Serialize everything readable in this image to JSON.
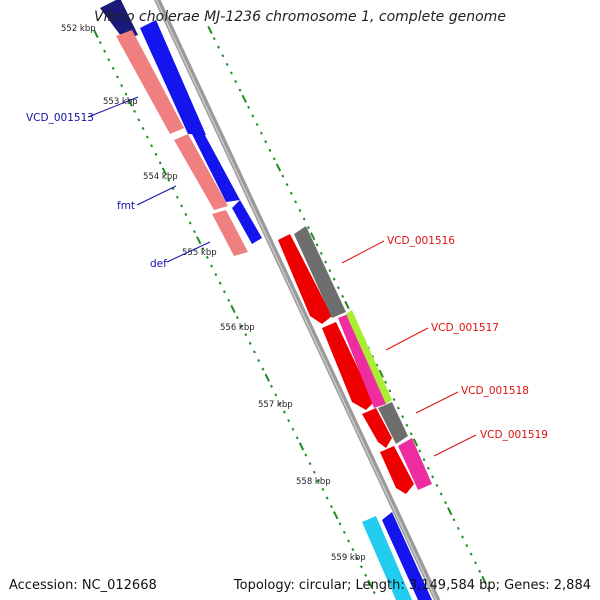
{
  "title": "Vibrio cholerae MJ-1236 chromosome 1, complete genome",
  "accession": "Accession: NC_012668",
  "summary": "Topology: circular; Length: 3,149,584 bp; Genes: 2,884",
  "colors": {
    "backbone": "#999999",
    "tick": "#1f8c1f",
    "forward_gene": "#0000ee",
    "forward_rna": "#f08c8c",
    "reverse_gene": "#ee0000",
    "gray_gene": "#6e6e6e",
    "magenta_gene": "#ee2ea0",
    "lime_gene": "#aaee33",
    "cyan_gene": "#22ccee",
    "label_forward": "#1111aa",
    "label_reverse": "#dd1111"
  },
  "scale": {
    "unit": "kbp",
    "labels": [
      "552 kbp",
      "553 kbp",
      "554 kbp",
      "555 kbp",
      "556 kbp",
      "557 kbp",
      "558 kbp",
      "559 kbp"
    ]
  },
  "gene_labels": {
    "forward": [
      "VCD_001513",
      "fmt",
      "def"
    ],
    "reverse": [
      "VCD_001516",
      "VCD_001517",
      "VCD_001518",
      "VCD_001519"
    ]
  },
  "features": [
    {
      "name": "gene-blue-1",
      "color": "forward_gene"
    },
    {
      "name": "gene-blue-2",
      "color": "forward_gene"
    },
    {
      "name": "gene-blue-3",
      "color": "forward_gene"
    },
    {
      "name": "gene-salmon-1",
      "color": "forward_rna"
    },
    {
      "name": "gene-salmon-2",
      "color": "forward_rna"
    },
    {
      "name": "gene-salmon-3",
      "color": "forward_rna"
    },
    {
      "name": "gene-red-1",
      "color": "reverse_gene"
    },
    {
      "name": "gene-red-2",
      "color": "reverse_gene"
    },
    {
      "name": "gene-red-3",
      "color": "reverse_gene"
    },
    {
      "name": "gene-red-4",
      "color": "reverse_gene"
    },
    {
      "name": "gene-gray-1",
      "color": "gray_gene"
    },
    {
      "name": "gene-gray-2",
      "color": "gray_gene"
    },
    {
      "name": "gene-magenta-1",
      "color": "magenta_gene"
    },
    {
      "name": "gene-magenta-2",
      "color": "magenta_gene"
    },
    {
      "name": "gene-lime-1",
      "color": "lime_gene"
    },
    {
      "name": "gene-cyan-1",
      "color": "cyan_gene"
    },
    {
      "name": "gene-blue-4",
      "color": "forward_gene"
    }
  ]
}
